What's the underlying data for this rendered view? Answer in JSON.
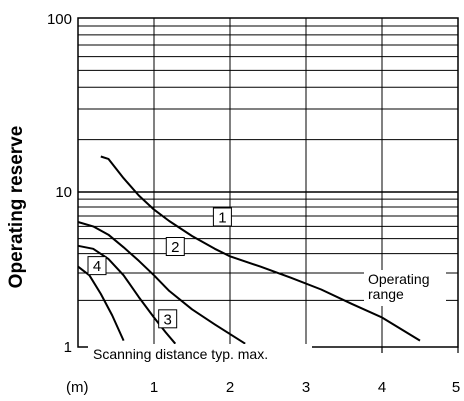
{
  "chart_data": {
    "type": "line",
    "ylabel": "Operating reserve",
    "xlabel": "(m)",
    "x_ticks": [
      "1",
      "2",
      "3",
      "4",
      "5"
    ],
    "y_ticks": [
      "1",
      "10",
      "100"
    ],
    "y_scale": "log",
    "xlim": [
      0,
      5
    ],
    "ylim": [
      1,
      100
    ],
    "grid": true,
    "annotations": {
      "operating_range_line1": "Operating",
      "operating_range_line2": "range",
      "bottom_note": "Scanning distance typ. max."
    },
    "series": [
      {
        "name": "1",
        "points": [
          [
            0.3,
            16
          ],
          [
            0.4,
            15.5
          ],
          [
            0.6,
            12
          ],
          [
            0.8,
            9.5
          ],
          [
            1.0,
            7.7
          ],
          [
            1.2,
            6.5
          ],
          [
            1.5,
            5.2
          ],
          [
            1.8,
            4.3
          ],
          [
            2.0,
            3.85
          ],
          [
            2.4,
            3.3
          ],
          [
            2.8,
            2.8
          ],
          [
            3.2,
            2.35
          ],
          [
            3.6,
            1.9
          ],
          [
            4.0,
            1.55
          ],
          [
            4.5,
            1.1
          ]
        ]
      },
      {
        "name": "2",
        "points": [
          [
            0.0,
            6.4
          ],
          [
            0.2,
            6.0
          ],
          [
            0.4,
            5.3
          ],
          [
            0.6,
            4.4
          ],
          [
            0.8,
            3.6
          ],
          [
            1.0,
            2.9
          ],
          [
            1.2,
            2.3
          ],
          [
            1.5,
            1.75
          ],
          [
            1.8,
            1.4
          ],
          [
            2.2,
            1.05
          ]
        ]
      },
      {
        "name": "3",
        "points": [
          [
            0.0,
            4.5
          ],
          [
            0.2,
            4.3
          ],
          [
            0.4,
            3.7
          ],
          [
            0.6,
            2.9
          ],
          [
            0.8,
            2.1
          ],
          [
            1.0,
            1.55
          ],
          [
            1.15,
            1.25
          ],
          [
            1.28,
            1.05
          ]
        ]
      },
      {
        "name": "4",
        "points": [
          [
            0.0,
            3.3
          ],
          [
            0.15,
            2.9
          ],
          [
            0.3,
            2.2
          ],
          [
            0.45,
            1.6
          ],
          [
            0.6,
            1.1
          ]
        ]
      }
    ],
    "series_label_boxes": [
      "1",
      "2",
      "3",
      "4"
    ]
  },
  "colors": {
    "axis": "#000000",
    "curve": "#000000",
    "grid": "#000000"
  }
}
